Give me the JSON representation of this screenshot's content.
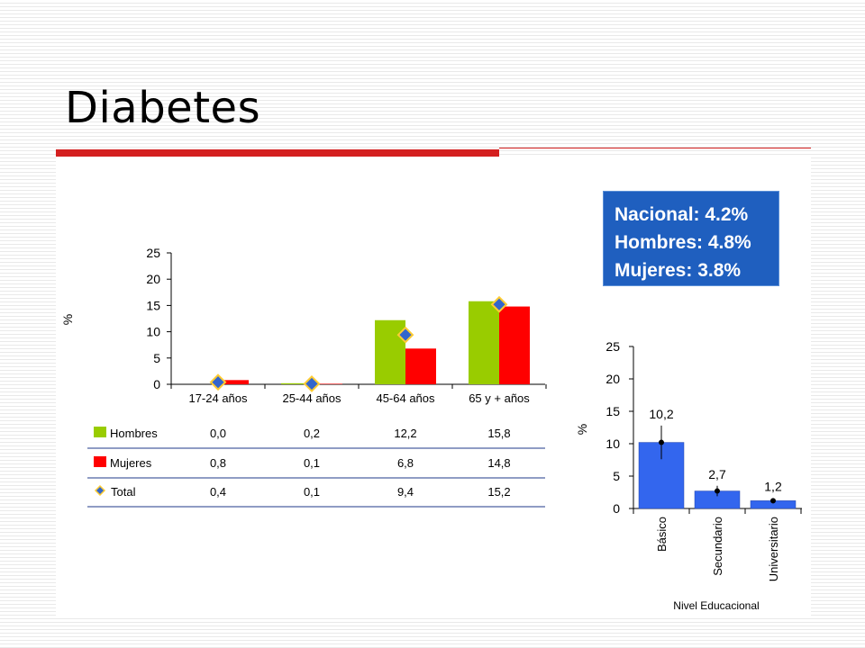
{
  "page": {
    "title": "Diabetes",
    "summary": {
      "nacional": "Nacional: 4.2%",
      "hombres": "Hombres: 4.8%",
      "mujeres": "Mujeres: 3.8%"
    }
  },
  "colors": {
    "accent_red": "#d41f1f",
    "hombres": "#99cc00",
    "mujeres": "#ff0000",
    "total_marker": "#3366cc",
    "total_marker_border": "#ffcc33",
    "edu_bar": "#3366ee",
    "summary_bg": "#1f5fbf"
  },
  "chart_data": [
    {
      "type": "bar",
      "title": "",
      "ylabel": "%",
      "ylim": [
        0,
        25
      ],
      "yticks": [
        0,
        5,
        10,
        15,
        20,
        25
      ],
      "categories": [
        "17-24 años",
        "25-44 años",
        "45-64 años",
        "65 y  + años"
      ],
      "series": [
        {
          "name": "Hombres",
          "kind": "bar",
          "values": [
            0.0,
            0.2,
            12.2,
            15.8
          ],
          "labels": [
            "0,0",
            "0,2",
            "12,2",
            "15,8"
          ]
        },
        {
          "name": "Mujeres",
          "kind": "bar",
          "values": [
            0.8,
            0.1,
            6.8,
            14.8
          ],
          "labels": [
            "0,8",
            "0,1",
            "6,8",
            "14,8"
          ]
        },
        {
          "name": "Total",
          "kind": "marker",
          "values": [
            0.4,
            0.1,
            9.4,
            15.2
          ],
          "labels": [
            "0,4",
            "0,1",
            "9,4",
            "15,2"
          ]
        }
      ],
      "grid": false,
      "legend": "table-below"
    },
    {
      "type": "bar",
      "title": "",
      "xlabel": "Nivel Educacional",
      "ylabel": "%",
      "ylim": [
        0,
        25
      ],
      "yticks": [
        0,
        5,
        10,
        15,
        20,
        25
      ],
      "categories": [
        "Básico",
        "Secundario",
        "Universitario"
      ],
      "values": [
        10.2,
        2.7,
        1.2
      ],
      "data_labels": [
        "10,2",
        "2,7",
        "1,2"
      ],
      "error_bars": [
        [
          7.6,
          12.8
        ],
        [
          1.9,
          3.5
        ],
        [
          0.8,
          1.6
        ]
      ],
      "grid": false
    }
  ]
}
